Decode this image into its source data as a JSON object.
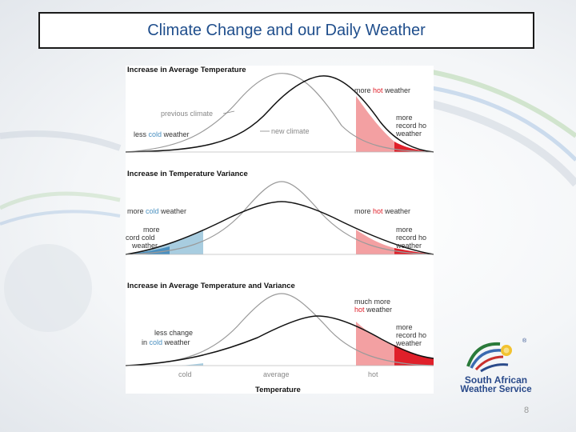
{
  "slide": {
    "title": "Climate Change and our Daily Weather",
    "page_number": "8"
  },
  "figure": {
    "panel1": {
      "heading": "Increase in Average Temperature",
      "labels": {
        "more_hot_a": "more ",
        "more_hot_b": "hot",
        "more_hot_c": " weather",
        "previous_climate": "previous climate",
        "new_climate": "new climate",
        "less_cold_a": "less ",
        "less_cold_b": "cold",
        "less_cold_c": " weather",
        "more_record_1": "more",
        "more_record_2": "record ho",
        "more_record_3": "weather"
      }
    },
    "panel2": {
      "heading": "Increase in Temperature Variance",
      "labels": {
        "more_cold_a": "more ",
        "more_cold_b": "cold",
        "more_cold_c": " weather",
        "more_hot_a": "more ",
        "more_hot_b": "hot",
        "more_hot_c": " weather",
        "record_cold_1": "more",
        "record_cold_2": "cord cold",
        "record_cold_3": "weather",
        "record_hot_1": "more",
        "record_hot_2": "record ho",
        "record_hot_3": "weather"
      }
    },
    "panel3": {
      "heading": "Increase in Average Temperature and Variance",
      "labels": {
        "much_more_1": "much more",
        "much_more_2": "hot",
        "much_more_3": " weather",
        "less_change_1": "less change",
        "less_change_2a": "in ",
        "less_change_2b": "cold",
        "less_change_2c": " weather",
        "record_hot_1": "more",
        "record_hot_2": "record ho",
        "record_hot_3": "weather"
      },
      "axis": {
        "cold": "cold",
        "average": "average",
        "hot": "hot",
        "xlabel": "Temperature"
      }
    },
    "colors": {
      "hot": "#e0202a",
      "hot_light": "#f3a0a2",
      "cold": "#4a90c0",
      "cold_light": "#a8cde0",
      "previous_curve": "#9a9a9a",
      "new_curve": "#111111"
    }
  },
  "logo": {
    "line1": "South African",
    "line2": "Weather Service",
    "icon": "swirl-sun-logo-icon"
  }
}
